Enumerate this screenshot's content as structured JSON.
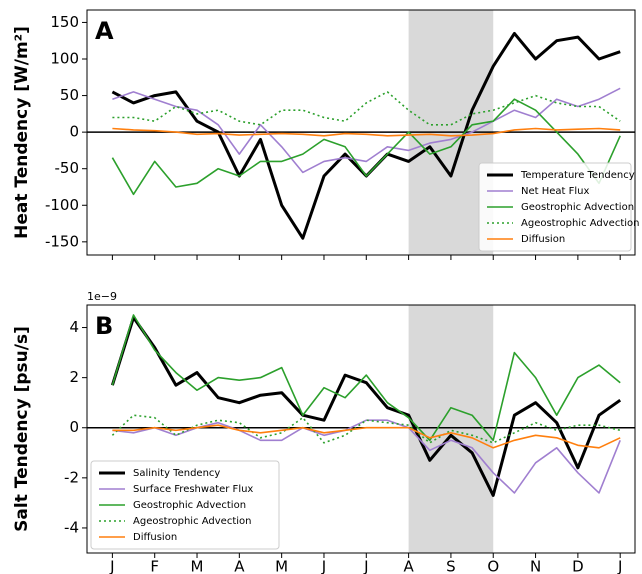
{
  "chart_data": [
    {
      "type": "line",
      "panel_label": "A",
      "ylabel": "Heat Tendency [W/m²]",
      "xlim": [
        -0.6,
        12.35
      ],
      "ylim": [
        -168,
        167
      ],
      "xticks": [
        0,
        1,
        2,
        3,
        4,
        5,
        6,
        7,
        8,
        9,
        10,
        11,
        12
      ],
      "yticks": [
        150,
        100,
        50,
        0,
        -50,
        -100,
        -150
      ],
      "hline": 0,
      "shaded_span": [
        7,
        9
      ],
      "legend": "lower right",
      "x": [
        0,
        0.5,
        1,
        1.5,
        2,
        2.5,
        3,
        3.5,
        4,
        4.5,
        5,
        5.5,
        6,
        6.5,
        7,
        7.5,
        8,
        8.5,
        9,
        9.5,
        10,
        10.5,
        11,
        11.5,
        12
      ],
      "series": [
        {
          "name": "Temperature Tendency",
          "color": "#000000",
          "linewidth": 3,
          "linestyle": "solid",
          "values": [
            55,
            40,
            50,
            55,
            15,
            0,
            -60,
            -10,
            -100,
            -145,
            -60,
            -30,
            -60,
            -30,
            -40,
            -20,
            -60,
            30,
            90,
            135,
            100,
            125,
            130,
            100,
            110
          ]
        },
        {
          "name": "Net Heat Flux",
          "color": "#a07fd0",
          "linewidth": 1.6,
          "linestyle": "solid",
          "values": [
            45,
            55,
            45,
            35,
            30,
            10,
            -30,
            10,
            -20,
            -55,
            -40,
            -35,
            -40,
            -20,
            -25,
            -15,
            -10,
            0,
            15,
            30,
            20,
            45,
            35,
            45,
            60
          ]
        },
        {
          "name": "Geostrophic Advection",
          "color": "#2ca02c",
          "linewidth": 1.6,
          "linestyle": "solid",
          "values": [
            -35,
            -85,
            -40,
            -75,
            -70,
            -50,
            -60,
            -40,
            -40,
            -30,
            -10,
            -20,
            -60,
            -30,
            0,
            -30,
            -20,
            10,
            15,
            45,
            30,
            0,
            -30,
            -70,
            -5
          ]
        },
        {
          "name": "Ageostrophic Advection",
          "color": "#2ca02c",
          "linewidth": 1.6,
          "linestyle": "dotted",
          "values": [
            20,
            20,
            15,
            35,
            25,
            30,
            15,
            10,
            30,
            30,
            20,
            15,
            40,
            55,
            30,
            10,
            10,
            25,
            30,
            40,
            50,
            40,
            35,
            35,
            15
          ]
        },
        {
          "name": "Diffusion",
          "color": "#ff7f0e",
          "linewidth": 1.6,
          "linestyle": "solid",
          "values": [
            5,
            3,
            2,
            0,
            -3,
            -2,
            -4,
            -3,
            -2,
            -3,
            -5,
            -2,
            -3,
            -5,
            -4,
            -3,
            -5,
            -4,
            -2,
            3,
            5,
            3,
            4,
            5,
            3
          ]
        }
      ]
    },
    {
      "type": "line",
      "panel_label": "B",
      "ylabel": "Salt Tendency [psu/s]",
      "offset_label": "1e−9",
      "xlim": [
        -0.6,
        12.35
      ],
      "ylim": [
        -5,
        4.9
      ],
      "xticks": [
        {
          "value": 0,
          "label": "J"
        },
        {
          "value": 1,
          "label": "F"
        },
        {
          "value": 2,
          "label": "M"
        },
        {
          "value": 3,
          "label": "A"
        },
        {
          "value": 4,
          "label": "M"
        },
        {
          "value": 5,
          "label": "J"
        },
        {
          "value": 6,
          "label": "J"
        },
        {
          "value": 7,
          "label": "A"
        },
        {
          "value": 8,
          "label": "S"
        },
        {
          "value": 9,
          "label": "O"
        },
        {
          "value": 10,
          "label": "N"
        },
        {
          "value": 11,
          "label": "D"
        },
        {
          "value": 12,
          "label": "J"
        }
      ],
      "yticks": [
        4,
        2,
        0,
        -2,
        -4
      ],
      "hline": 0,
      "shaded_span": [
        7,
        9
      ],
      "legend": "lower left",
      "x": [
        0,
        0.5,
        1,
        1.5,
        2,
        2.5,
        3,
        3.5,
        4,
        4.5,
        5,
        5.5,
        6,
        6.5,
        7,
        7.5,
        8,
        8.5,
        9,
        9.5,
        10,
        10.5,
        11,
        11.5,
        12
      ],
      "series": [
        {
          "name": "Salinity Tendency",
          "color": "#000000",
          "linewidth": 3,
          "linestyle": "solid",
          "values": [
            1.7,
            4.4,
            3.2,
            1.7,
            2.2,
            1.2,
            1.0,
            1.3,
            1.4,
            0.5,
            0.3,
            2.1,
            1.8,
            0.8,
            0.5,
            -1.3,
            -0.3,
            -1.0,
            -2.7,
            0.5,
            1.0,
            0.2,
            -1.6,
            0.5,
            1.1
          ]
        },
        {
          "name": "Surface Freshwater Flux",
          "color": "#a07fd0",
          "linewidth": 1.6,
          "linestyle": "solid",
          "values": [
            -0.1,
            -0.2,
            0,
            -0.3,
            0,
            0.2,
            -0.1,
            -0.5,
            -0.5,
            0,
            -0.3,
            -0.1,
            0.3,
            0.3,
            0,
            -0.9,
            -0.5,
            -0.8,
            -1.8,
            -2.6,
            -1.4,
            -0.8,
            -1.8,
            -2.6,
            -0.5
          ]
        },
        {
          "name": "Geostrophic Advection",
          "color": "#2ca02c",
          "linewidth": 1.6,
          "linestyle": "solid",
          "values": [
            1.7,
            4.5,
            3.1,
            2.2,
            1.5,
            2.0,
            1.9,
            2.0,
            2.4,
            0.5,
            1.6,
            1.2,
            2.1,
            1.0,
            0.4,
            -0.5,
            0.8,
            0.5,
            -0.5,
            3.0,
            2.0,
            0.5,
            2.0,
            2.5,
            1.8
          ]
        },
        {
          "name": "Ageostrophic Advection",
          "color": "#2ca02c",
          "linewidth": 1.6,
          "linestyle": "dotted",
          "values": [
            -0.3,
            0.5,
            0.4,
            -0.3,
            0.1,
            0.3,
            0.2,
            -0.4,
            -0.2,
            0.4,
            -0.6,
            -0.3,
            0.3,
            0.2,
            0.1,
            -0.6,
            -0.1,
            -0.3,
            -0.6,
            -0.2,
            0.2,
            -0.1,
            0.1,
            0.1,
            -0.1
          ]
        },
        {
          "name": "Diffusion",
          "color": "#ff7f0e",
          "linewidth": 1.6,
          "linestyle": "solid",
          "values": [
            -0.1,
            -0.1,
            0,
            -0.1,
            0,
            0.1,
            -0.1,
            -0.2,
            -0.1,
            0,
            -0.2,
            -0.1,
            0,
            0,
            0,
            -0.4,
            -0.2,
            -0.4,
            -0.8,
            -0.5,
            -0.3,
            -0.4,
            -0.7,
            -0.8,
            -0.4
          ]
        }
      ]
    }
  ]
}
